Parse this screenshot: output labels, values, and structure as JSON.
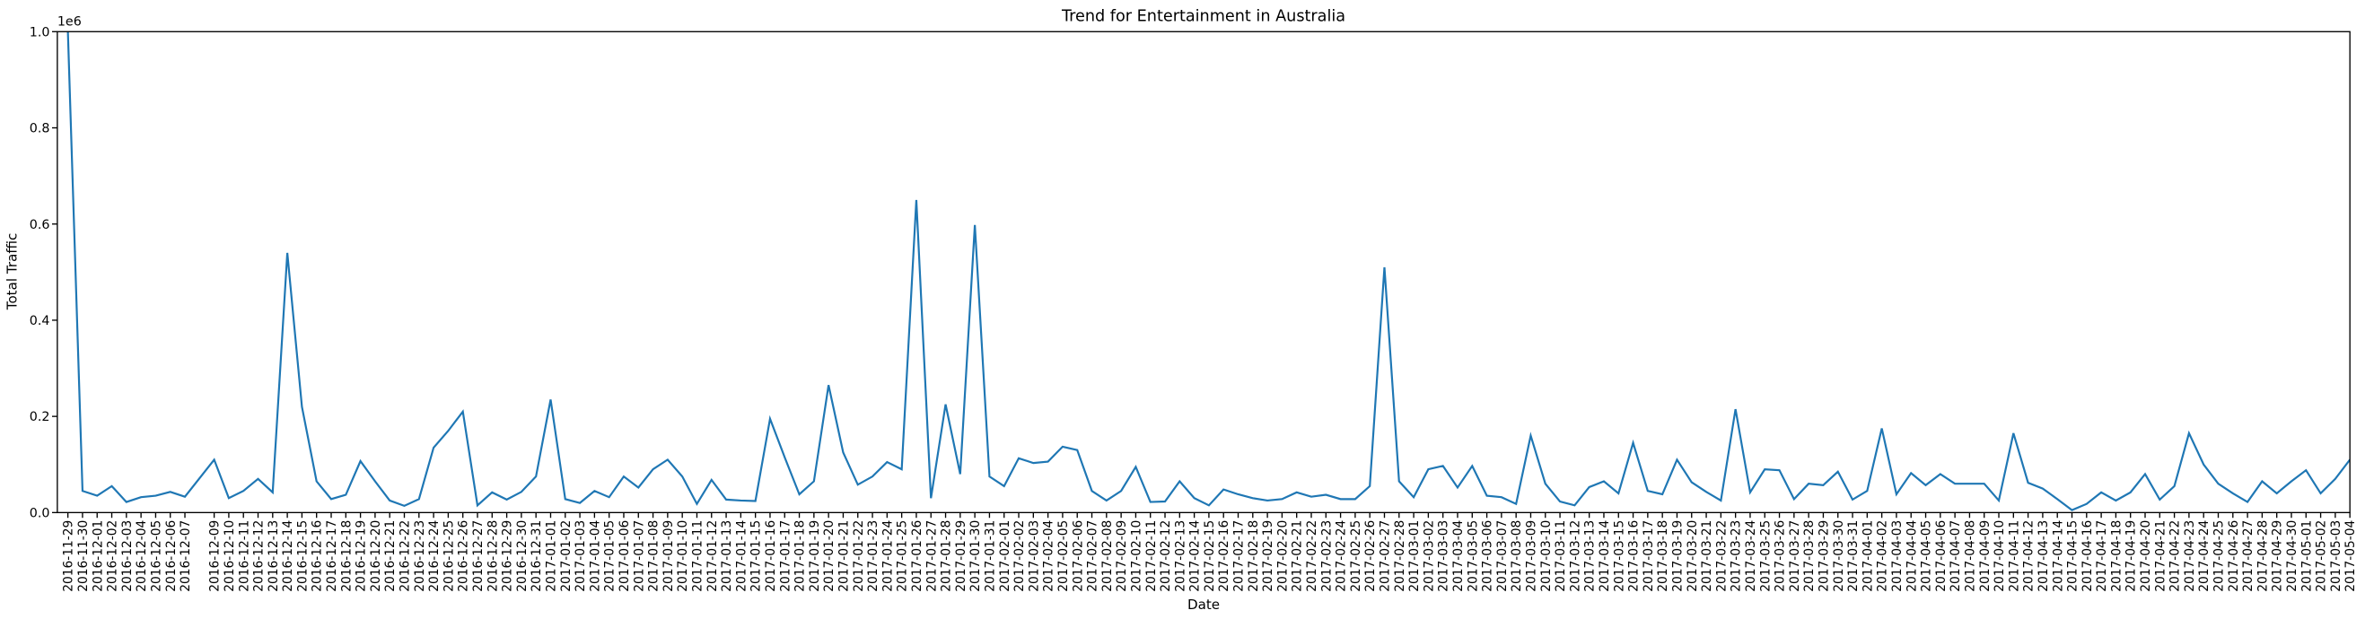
{
  "chart_data": {
    "type": "line",
    "title": "Trend for Entertainment in Australia",
    "x_label": "Date",
    "y_label": "Total Traffic",
    "y_offset_label": "1e6",
    "x": [
      "2016-11-29",
      "2016-11-30",
      "2016-12-01",
      "2016-12-02",
      "2016-12-03",
      "2016-12-04",
      "2016-12-05",
      "2016-12-06",
      "2016-12-07",
      "2016-12-09",
      "2016-12-10",
      "2016-12-11",
      "2016-12-12",
      "2016-12-13",
      "2016-12-14",
      "2016-12-15",
      "2016-12-16",
      "2016-12-17",
      "2016-12-18",
      "2016-12-19",
      "2016-12-20",
      "2016-12-21",
      "2016-12-22",
      "2016-12-23",
      "2016-12-24",
      "2016-12-25",
      "2016-12-26",
      "2016-12-27",
      "2016-12-28",
      "2016-12-29",
      "2016-12-30",
      "2016-12-31",
      "2017-01-01",
      "2017-01-02",
      "2017-01-03",
      "2017-01-04",
      "2017-01-05",
      "2017-01-06",
      "2017-01-07",
      "2017-01-08",
      "2017-01-09",
      "2017-01-10",
      "2017-01-11",
      "2017-01-12",
      "2017-01-13",
      "2017-01-14",
      "2017-01-15",
      "2017-01-16",
      "2017-01-17",
      "2017-01-18",
      "2017-01-19",
      "2017-01-20",
      "2017-01-21",
      "2017-01-22",
      "2017-01-23",
      "2017-01-24",
      "2017-01-25",
      "2017-01-26",
      "2017-01-27",
      "2017-01-28",
      "2017-01-29",
      "2017-01-30",
      "2017-01-31",
      "2017-02-01",
      "2017-02-02",
      "2017-02-03",
      "2017-02-04",
      "2017-02-05",
      "2017-02-06",
      "2017-02-07",
      "2017-02-08",
      "2017-02-09",
      "2017-02-10",
      "2017-02-11",
      "2017-02-12",
      "2017-02-13",
      "2017-02-14",
      "2017-02-15",
      "2017-02-16",
      "2017-02-17",
      "2017-02-18",
      "2017-02-19",
      "2017-02-20",
      "2017-02-21",
      "2017-02-22",
      "2017-02-23",
      "2017-02-24",
      "2017-02-25",
      "2017-02-26",
      "2017-02-27",
      "2017-02-28",
      "2017-03-01",
      "2017-03-02",
      "2017-03-03",
      "2017-03-04",
      "2017-03-05",
      "2017-03-06",
      "2017-03-07",
      "2017-03-08",
      "2017-03-09",
      "2017-03-10",
      "2017-03-11",
      "2017-03-12",
      "2017-03-13",
      "2017-03-14",
      "2017-03-15",
      "2017-03-16",
      "2017-03-17",
      "2017-03-18",
      "2017-03-19",
      "2017-03-20",
      "2017-03-21",
      "2017-03-22",
      "2017-03-23",
      "2017-03-24",
      "2017-03-25",
      "2017-03-26",
      "2017-03-27",
      "2017-03-28",
      "2017-03-29",
      "2017-03-30",
      "2017-03-31",
      "2017-04-01",
      "2017-04-02",
      "2017-04-03",
      "2017-04-04",
      "2017-04-05",
      "2017-04-06",
      "2017-04-07",
      "2017-04-08",
      "2017-04-09",
      "2017-04-10",
      "2017-04-11",
      "2017-04-12",
      "2017-04-13",
      "2017-04-14",
      "2017-04-15",
      "2017-04-16",
      "2017-04-17",
      "2017-04-18",
      "2017-04-19",
      "2017-04-20",
      "2017-04-21",
      "2017-04-22",
      "2017-04-23",
      "2017-04-24",
      "2017-04-25",
      "2017-04-26",
      "2017-04-27",
      "2017-04-28",
      "2017-04-29",
      "2017-04-30",
      "2017-05-01",
      "2017-05-02",
      "2017-05-03",
      "2017-05-04"
    ],
    "series": [
      {
        "name": "Total Traffic",
        "color": "#1f77b4",
        "values": [
          1000000,
          45000,
          35000,
          55000,
          22000,
          32000,
          35000,
          43000,
          33000,
          110000,
          30000,
          45000,
          70000,
          42000,
          540000,
          220000,
          65000,
          28000,
          37000,
          107000,
          65000,
          25000,
          14000,
          28000,
          135000,
          170000,
          210000,
          15000,
          42000,
          27000,
          43000,
          75000,
          235000,
          28000,
          20000,
          45000,
          32000,
          75000,
          52000,
          90000,
          110000,
          75000,
          18000,
          68000,
          27000,
          25000,
          24000,
          195000,
          115000,
          38000,
          65000,
          265000,
          125000,
          58000,
          75000,
          105000,
          90000,
          650000,
          30000,
          225000,
          80000,
          598000,
          75000,
          55000,
          113000,
          103000,
          106000,
          137000,
          130000,
          45000,
          25000,
          45000,
          95000,
          22000,
          23000,
          65000,
          30000,
          15000,
          48000,
          38000,
          30000,
          25000,
          28000,
          42000,
          33000,
          37000,
          28000,
          28000,
          55000,
          510000,
          65000,
          32000,
          90000,
          97000,
          52000,
          97000,
          35000,
          32000,
          18000,
          160000,
          60000,
          23000,
          15000,
          53000,
          65000,
          40000,
          145000,
          45000,
          38000,
          110000,
          63000,
          43000,
          25000,
          215000,
          42000,
          90000,
          88000,
          28000,
          60000,
          57000,
          85000,
          27000,
          45000,
          175000,
          38000,
          82000,
          57000,
          80000,
          60000,
          60000,
          60000,
          25000,
          165000,
          62000,
          50000,
          28000,
          5000,
          18000,
          42000,
          25000,
          42000,
          80000,
          27000,
          55000,
          165000,
          100000,
          60000,
          40000,
          22000,
          65000,
          40000,
          65000,
          88000,
          40000,
          70000,
          110000
        ]
      }
    ],
    "ylim": [
      0,
      1000000
    ],
    "yticks": [
      {
        "value": 0,
        "label": "0.0"
      },
      {
        "value": 200000,
        "label": "0.2"
      },
      {
        "value": 400000,
        "label": "0.4"
      },
      {
        "value": 600000,
        "label": "0.6"
      },
      {
        "value": 800000,
        "label": "0.8"
      },
      {
        "value": 1000000,
        "label": "1.0"
      }
    ],
    "grid": false
  }
}
